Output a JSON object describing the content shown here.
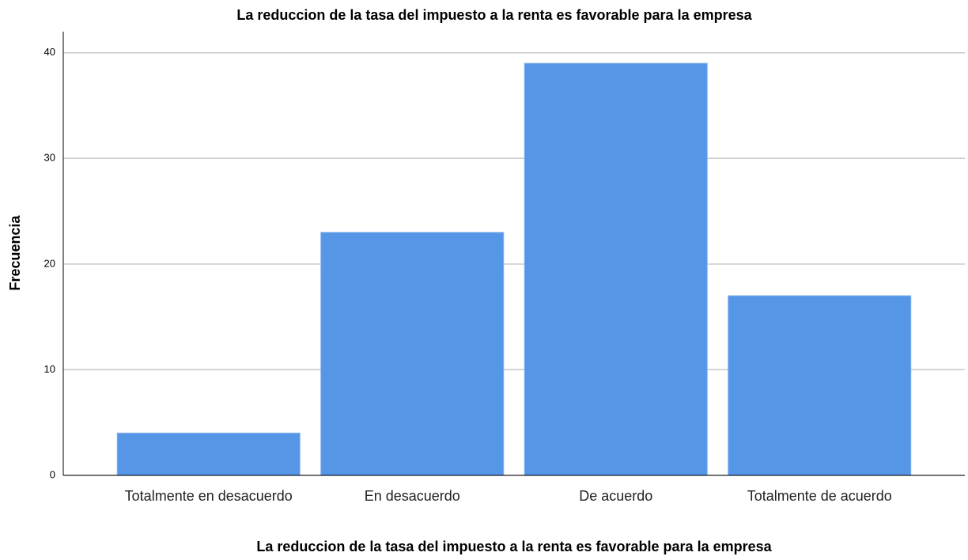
{
  "chart_data": {
    "type": "bar",
    "title": "La reduccion de la tasa del impuesto a la renta es favorable para la empresa",
    "x_label": "La reduccion de la tasa del impuesto a la renta es favorable para la empresa",
    "y_label": "Frecuencia",
    "categories": [
      "Totalmente en desacuerdo",
      "En desacuerdo",
      "De acuerdo",
      "Totalmente de acuerdo"
    ],
    "values": [
      4,
      23,
      39,
      17
    ],
    "color": "#5596e6",
    "ylim": [
      0,
      42
    ],
    "yticks": [
      0,
      10,
      20,
      30,
      40
    ],
    "grid": true
  }
}
